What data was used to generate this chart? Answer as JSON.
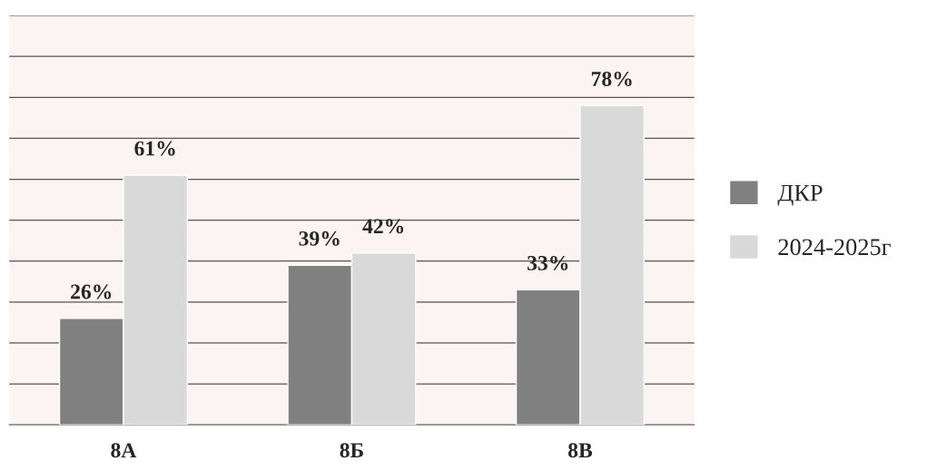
{
  "chart_data": {
    "type": "bar",
    "categories": [
      "8А",
      "8Б",
      "8В"
    ],
    "series": [
      {
        "name": "ДКР",
        "color": "#808080",
        "values": [
          26,
          39,
          33
        ],
        "value_labels": [
          "26%",
          "39%",
          "33%"
        ]
      },
      {
        "name": "2024-2025г",
        "color": "#d9d9d9",
        "values": [
          61,
          42,
          78
        ],
        "value_labels": [
          "61%",
          "42%",
          "78%"
        ]
      }
    ],
    "ylim": [
      0,
      100
    ],
    "yticks": [
      {
        "value": 0,
        "label": null
      },
      {
        "value": 10,
        "label": null
      },
      {
        "value": 20,
        "label": null
      },
      {
        "value": 30,
        "label": null
      },
      {
        "value": 40,
        "label": null
      },
      {
        "value": 50,
        "label": null
      },
      {
        "value": 60,
        "label": null
      },
      {
        "value": 70,
        "label": null
      },
      {
        "value": 80,
        "label": null
      },
      {
        "value": 90,
        "label": null
      },
      {
        "value": 100,
        "label": null
      }
    ],
    "grid": "y",
    "legend": "right",
    "tick_labels": "x"
  }
}
